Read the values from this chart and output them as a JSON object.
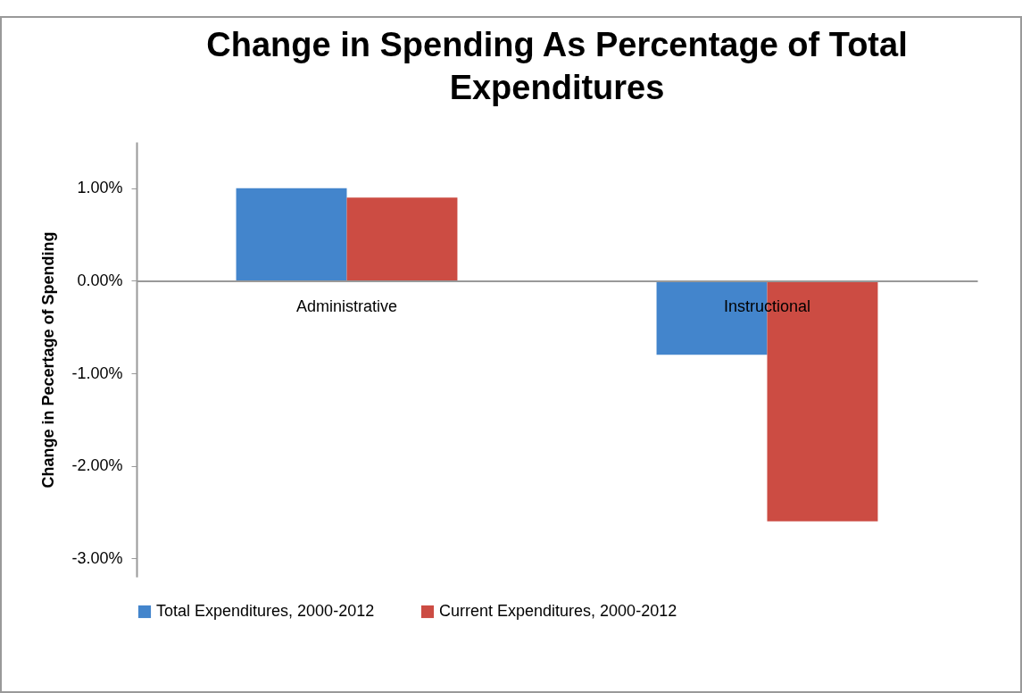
{
  "chart_data": {
    "type": "bar",
    "title": "Change in Spending As Percentage of Total Expenditures",
    "ylabel": "Change in Pecertage of Spending",
    "categories": [
      "Administrative",
      "Instructional"
    ],
    "series": [
      {
        "name": "Total Expenditures, 2000-2012",
        "color": "#4385cc",
        "values": [
          1.0,
          -0.8
        ]
      },
      {
        "name": "Current Expenditures, 2000-2012",
        "color": "#cc4c43",
        "values": [
          0.9,
          -2.6
        ]
      }
    ],
    "ylim": [
      -3.2,
      1.5
    ],
    "yticks": [
      {
        "value": -3,
        "label": "-3.00%"
      },
      {
        "value": -2,
        "label": "-2.00%"
      },
      {
        "value": -1,
        "label": "-1.00%"
      },
      {
        "value": 0,
        "label": "0.00%"
      },
      {
        "value": 1,
        "label": "1.00%"
      }
    ],
    "grid": false,
    "legend": "bottom"
  }
}
